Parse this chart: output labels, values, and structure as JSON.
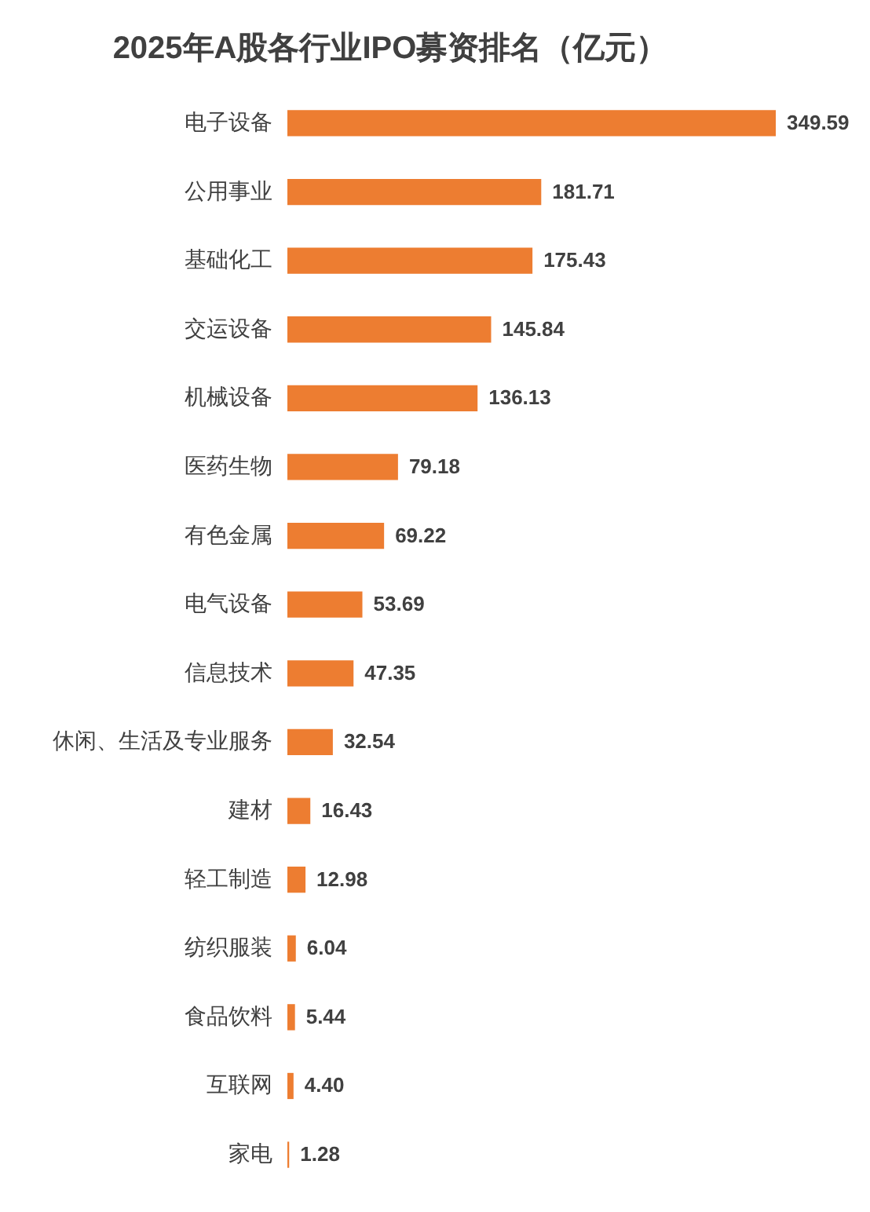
{
  "chart_data": {
    "type": "bar",
    "orientation": "horizontal",
    "title": "2025年A股各行业IPO募资排名（亿元）",
    "categories": [
      "电子设备",
      "公用事业",
      "基础化工",
      "交运设备",
      "机械设备",
      "医药生物",
      "有色金属",
      "电气设备",
      "信息技术",
      "休闲、生活及专业服务",
      "建材",
      "轻工制造",
      "纺织服装",
      "食品饮料",
      "互联网",
      "家电"
    ],
    "values": [
      349.59,
      181.71,
      175.43,
      145.84,
      136.13,
      79.18,
      69.22,
      53.69,
      47.35,
      32.54,
      16.43,
      12.98,
      6.04,
      5.44,
      4.4,
      1.28
    ],
    "value_labels": [
      "349.59",
      "181.71",
      "175.43",
      "145.84",
      "136.13",
      "79.18",
      "69.22",
      "53.69",
      "47.35",
      "32.54",
      "16.43",
      "12.98",
      "6.04",
      "5.44",
      "4.40",
      "1.28"
    ],
    "color": "#ed7d31"
  }
}
